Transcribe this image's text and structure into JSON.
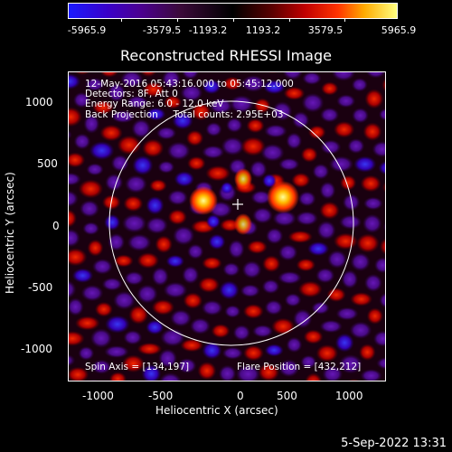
{
  "colorbar": {
    "ticks": [
      "-5965.9",
      "-3579.5",
      "-1193.2",
      "1193.2",
      "3579.5",
      "5965.9"
    ]
  },
  "title": "Reconstructed RHESSI Image",
  "info": {
    "line1": "12-May-2016 05:43:16.000 to 05:45:12.000",
    "line2": "Detectors: 8F, Att 0",
    "line3": "Energy Range: 6.0 - 12.0 keV",
    "line4": "Back Projection     Total counts: 2.95E+03",
    "spin_axis": "Spin Axis = [134,197]",
    "flare_position": "Flare Position = [432,212]"
  },
  "axes": {
    "xlabel": "Heliocentric X (arcsec)",
    "ylabel": "Heliocentric Y (arcsec)",
    "xticks": [
      "-1000",
      "-500",
      "0",
      "500",
      "1000"
    ],
    "yticks": [
      "1000",
      "500",
      "0",
      "-500",
      "-1000"
    ]
  },
  "footer": "5-Sep-2022 13:31"
}
